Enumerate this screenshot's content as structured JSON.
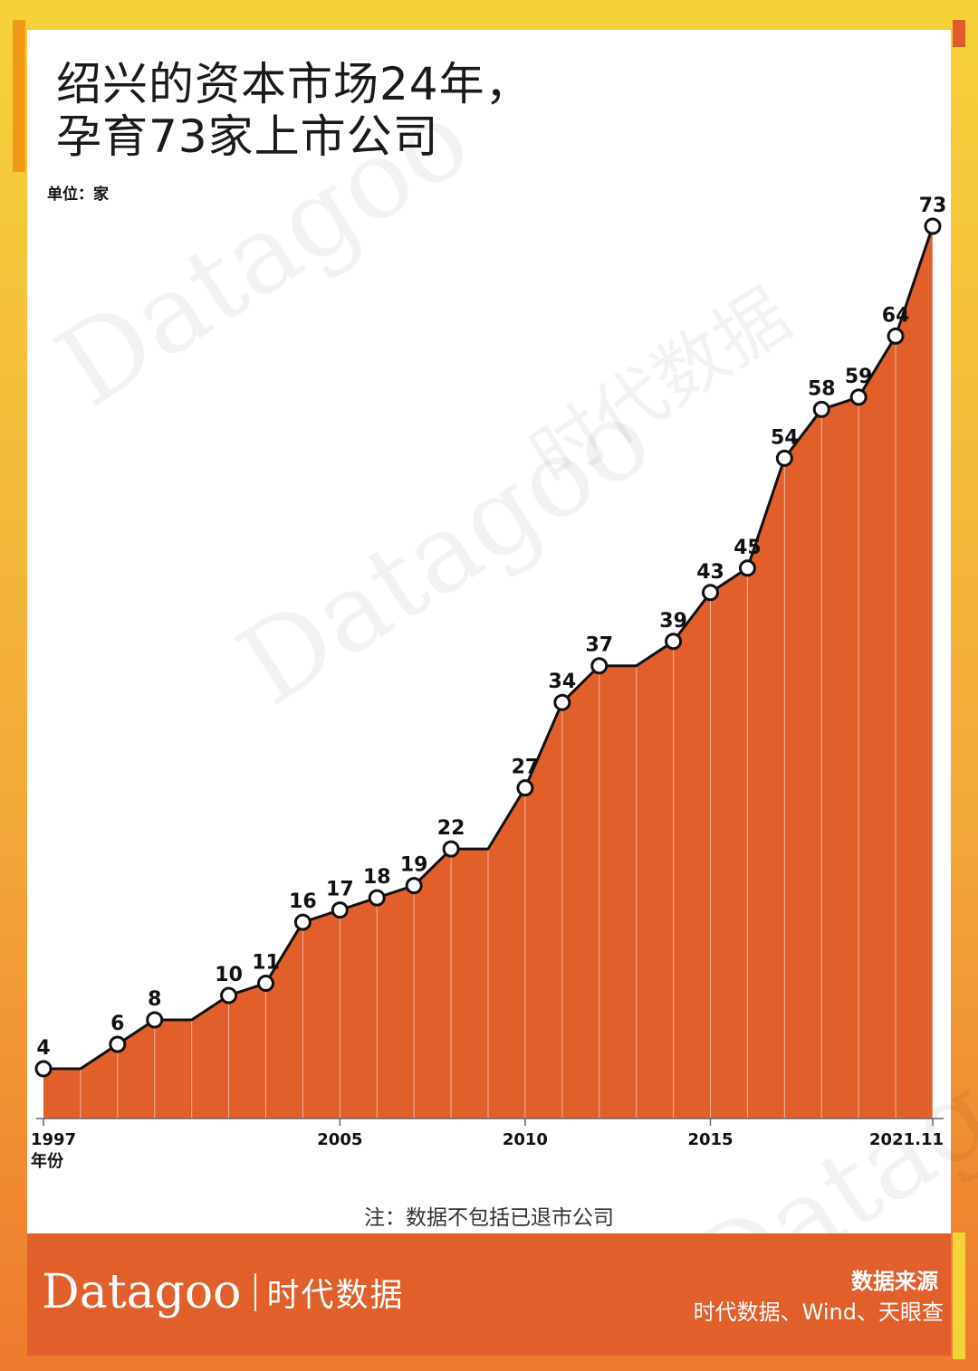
{
  "header": {
    "title_line1": "绍兴的资本市场24年，",
    "title_line2": "孕育73家上市公司",
    "unit": "单位：家"
  },
  "note": "注：数据不包括已退市公司",
  "footer": {
    "logo_latin": "Datagoo",
    "logo_cn": "时代数据",
    "source_title": "数据来源",
    "source_text": "时代数据、Wind、天眼查"
  },
  "watermarks": [
    "Datagoo",
    "时代数据"
  ],
  "colors": {
    "area_fill": "#e05f2b",
    "line": "#111111",
    "marker_fill": "#ffffff",
    "frame_top": "#f6d23a",
    "frame_bottom": "#ee7a2e"
  },
  "chart_data": {
    "type": "area",
    "title": "绍兴的资本市场24年，孕育73家上市公司",
    "ylabel": "单位：家",
    "xlabel": "年份",
    "x_tick_labels": [
      {
        "index": 0,
        "label": "1997"
      },
      {
        "index": 8,
        "label": "2005"
      },
      {
        "index": 13,
        "label": "2010"
      },
      {
        "index": 18,
        "label": "2015"
      },
      {
        "index": 24,
        "label": "2021.11"
      }
    ],
    "x": [
      1997,
      1998,
      1999,
      2000,
      2001,
      2002,
      2003,
      2004,
      2005,
      2006,
      2007,
      2008,
      2009,
      2010,
      2011,
      2012,
      2013,
      2014,
      2015,
      2016,
      2017,
      2018,
      2019,
      2020,
      "2021.11"
    ],
    "values": [
      4,
      4,
      6,
      8,
      8,
      10,
      11,
      16,
      17,
      18,
      19,
      22,
      22,
      27,
      34,
      37,
      37,
      39,
      43,
      45,
      54,
      58,
      59,
      64,
      73
    ],
    "labeled": [
      true,
      false,
      true,
      true,
      false,
      true,
      true,
      true,
      true,
      true,
      true,
      true,
      false,
      true,
      true,
      true,
      false,
      true,
      true,
      true,
      true,
      true,
      true,
      true,
      true
    ],
    "ylim": [
      0,
      73
    ],
    "grid": false,
    "legend": "none"
  }
}
